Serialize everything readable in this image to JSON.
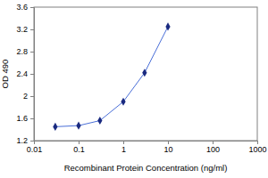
{
  "chart_data": {
    "type": "line",
    "log": "x",
    "xlabel": "Recombinant Protein Concentration (ng/ml)",
    "ylabel": "OD 490",
    "x": [
      0.03,
      0.1,
      0.3,
      1,
      3,
      10
    ],
    "values": [
      1.45,
      1.47,
      1.56,
      1.9,
      2.42,
      3.25
    ],
    "color": "#4a6fd8",
    "marker": "diamond",
    "grid": false,
    "xlim": [
      0.01,
      1000
    ],
    "xticks": [
      0.01,
      0.1,
      1,
      10,
      100,
      1000
    ],
    "ylim": [
      1.2,
      3.6
    ],
    "yticks": [
      1.2,
      1.6,
      2,
      2.4,
      2.8,
      3.2,
      3.6
    ]
  }
}
